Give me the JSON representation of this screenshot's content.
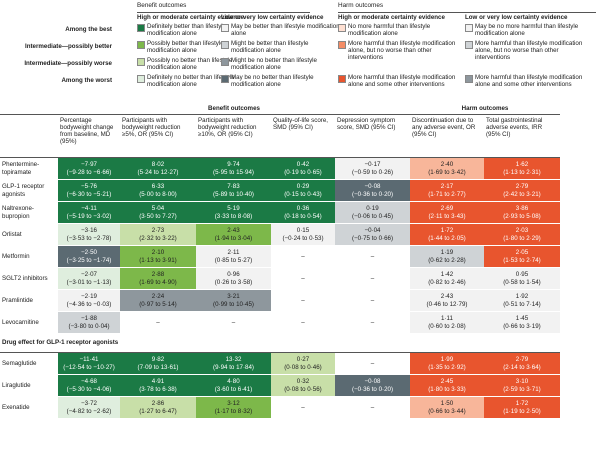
{
  "colors": {
    "best_benefit": "#1b7a45",
    "possibly_better_benefit": "#7db84a",
    "possibly_worse_benefit": "#c8dfa8",
    "worst_benefit": "#dfeede",
    "low_best": "#f2f2f2",
    "low_possibly_better": "#cfd3d6",
    "low_possibly_worse": "#8e979d",
    "low_worst": "#5b6a72",
    "harm_best": "#ffe0d2",
    "harm_possibly_better": "#f8b69a",
    "harm_possibly_worse": "#f58d66",
    "harm_worst": "#e8552e",
    "harm_low_best": "#f2f2f2",
    "harm_low_mid": "#cfd3d6",
    "harm_low_worst": "#8e979d"
  },
  "legend": {
    "benefit_title": "Benefit outcomes",
    "harm_title": "Harm outcomes",
    "high_moderate": "High or moderate certainty evidence",
    "low_very_low": "Low or very low certainty evidence",
    "rows": [
      {
        "label": "Among the best",
        "b_high": "Definitely better than lifestyle modification alone",
        "b_low": "May be better than lifestyle modification alone",
        "h_high": "No more harmful than lifestyle modification alone",
        "h_low": "May be no more harmful than lifestyle modification alone"
      },
      {
        "label": "Intermediate—possibly better",
        "b_high": "Possibly better than lifestyle modification alone",
        "b_low": "Might be better than lifestyle modification alone",
        "h_high": "More harmful than lifestyle modification alone, but no worse than other interventions",
        "h_low": "More harmful than lifestyle modification alone, but no worse than other interventions"
      },
      {
        "label": "Intermediate—possibly worse",
        "b_high": "Possibly no better than lifestyle modification alone",
        "b_low": "Might be no better than lifestyle modification alone",
        "h_high": "",
        "h_low": ""
      },
      {
        "label": "Among the worst",
        "b_high": "Definitely no better than lifestyle modification alone",
        "b_low": "May be no better than lifestyle modification alone",
        "h_high": "More harmful than lifestyle modification alone and some other interventions",
        "h_low": "More harmful than lifestyle modification alone and some other interventions"
      }
    ]
  },
  "table": {
    "benefit_header": "Benefit outcomes",
    "harm_header": "Harm outcomes",
    "columns": [
      "Percentage bodyweight change from baseline, MD (95%)",
      "Participants with bodyweight reduction ≥5%, OR (95% CI)",
      "Participants with bodyweight reduction ≥10%, OR (95% CI)",
      "Quality-of-life score, SMD (95% CI)",
      "Depression symptom score, SMD (95% CI)",
      "Discontinuation due to any adverse event, OR (95% CI)",
      "Total gastrointestinal adverse events, IRR (95% CI)"
    ],
    "rows": [
      {
        "name": "Phentermine-topiramate",
        "cells": [
          {
            "v": "−7·97",
            "ci": "(−9·28 to −6·66)",
            "c": "best_benefit"
          },
          {
            "v": "8·02",
            "ci": "(5·24 to 12·27)",
            "c": "best_benefit"
          },
          {
            "v": "9·74",
            "ci": "(5·95 to 15·94)",
            "c": "best_benefit"
          },
          {
            "v": "0·42",
            "ci": "(0·19 to 0·65)",
            "c": "best_benefit"
          },
          {
            "v": "−0·17",
            "ci": "(−0·59 to 0·26)",
            "c": "low_best"
          },
          {
            "v": "2·40",
            "ci": "(1·69 to 3·42)",
            "c": "harm_possibly_better"
          },
          {
            "v": "1·62",
            "ci": "(1·13 to 2·31)",
            "c": "harm_worst"
          }
        ]
      },
      {
        "name": "GLP-1 receptor agonists",
        "cells": [
          {
            "v": "−5·76",
            "ci": "(−6·30 to −5·21)",
            "c": "best_benefit"
          },
          {
            "v": "6·33",
            "ci": "(5·00 to 8·00)",
            "c": "best_benefit"
          },
          {
            "v": "7·83",
            "ci": "(5·89 to 10·40)",
            "c": "best_benefit"
          },
          {
            "v": "0·29",
            "ci": "(0·15 to 0·43)",
            "c": "best_benefit"
          },
          {
            "v": "−0·08",
            "ci": "(−0·36 to 0·20)",
            "c": "low_worst"
          },
          {
            "v": "2·17",
            "ci": "(1·71 to 2·77)",
            "c": "harm_worst"
          },
          {
            "v": "2·79",
            "ci": "(2·42 to 3·21)",
            "c": "harm_worst"
          }
        ]
      },
      {
        "name": "Naltrexone-bupropion",
        "cells": [
          {
            "v": "−4·11",
            "ci": "(−5·19 to −3·02)",
            "c": "best_benefit"
          },
          {
            "v": "5·04",
            "ci": "(3·50 to 7·27)",
            "c": "best_benefit"
          },
          {
            "v": "5·19",
            "ci": "(3·33 to 8·08)",
            "c": "best_benefit"
          },
          {
            "v": "0·36",
            "ci": "(0·18 to 0·54)",
            "c": "best_benefit"
          },
          {
            "v": "0·19",
            "ci": "(−0·06 to 0·45)",
            "c": "low_possibly_better"
          },
          {
            "v": "2·69",
            "ci": "(2·11 to 3·43)",
            "c": "harm_worst"
          },
          {
            "v": "3·86",
            "ci": "(2·93 to 5·08)",
            "c": "harm_worst"
          }
        ]
      },
      {
        "name": "Orlistat",
        "cells": [
          {
            "v": "−3·16",
            "ci": "(−3·53 to −2·78)",
            "c": "worst_benefit"
          },
          {
            "v": "2·73",
            "ci": "(2·32 to 3·22)",
            "c": "possibly_worse_benefit"
          },
          {
            "v": "2·43",
            "ci": "(1·94 to 3·04)",
            "c": "possibly_better_benefit"
          },
          {
            "v": "0·15",
            "ci": "(−0·24 to 0·53)",
            "c": "low_best"
          },
          {
            "v": "−0·04",
            "ci": "(−0·75 to 0·66)",
            "c": "low_possibly_better"
          },
          {
            "v": "1·72",
            "ci": "(1·44 to 2·05)",
            "c": "harm_worst"
          },
          {
            "v": "2·03",
            "ci": "(1·80 to 2·29)",
            "c": "harm_worst"
          }
        ]
      },
      {
        "name": "Metformin",
        "cells": [
          {
            "v": "−2·50",
            "ci": "(−3·25 to −1·74)",
            "c": "low_worst"
          },
          {
            "v": "2·10",
            "ci": "(1·13 to 3·91)",
            "c": "possibly_better_benefit"
          },
          {
            "v": "2·11",
            "ci": "(0·85 to 5·27)",
            "c": "low_best"
          },
          {
            "v": "–",
            "ci": "",
            "c": "none"
          },
          {
            "v": "–",
            "ci": "",
            "c": "none"
          },
          {
            "v": "1·19",
            "ci": "(0·62 to 2·28)",
            "c": "harm_low_mid"
          },
          {
            "v": "2·05",
            "ci": "(1·53 to 2·74)",
            "c": "harm_worst"
          }
        ]
      },
      {
        "name": "SGLT2 inhibitors",
        "cells": [
          {
            "v": "−2·07",
            "ci": "(−3·01 to −1·13)",
            "c": "worst_benefit"
          },
          {
            "v": "2·88",
            "ci": "(1·69 to 4·90)",
            "c": "possibly_better_benefit"
          },
          {
            "v": "0·96",
            "ci": "(0·26 to 3·58)",
            "c": "low_best"
          },
          {
            "v": "–",
            "ci": "",
            "c": "none"
          },
          {
            "v": "–",
            "ci": "",
            "c": "none"
          },
          {
            "v": "1·42",
            "ci": "(0·82 to 2·46)",
            "c": "harm_low_best"
          },
          {
            "v": "0·95",
            "ci": "(0·58 to 1·54)",
            "c": "harm_low_best"
          }
        ]
      },
      {
        "name": "Pramlintide",
        "cells": [
          {
            "v": "−2·19",
            "ci": "(−4·36 to −0·03)",
            "c": "low_best"
          },
          {
            "v": "2·24",
            "ci": "(0·97 to 5·14)",
            "c": "low_possibly_worse"
          },
          {
            "v": "3·21",
            "ci": "(0·99 to 10·45)",
            "c": "low_possibly_worse"
          },
          {
            "v": "–",
            "ci": "",
            "c": "none"
          },
          {
            "v": "–",
            "ci": "",
            "c": "none"
          },
          {
            "v": "2·43",
            "ci": "(0·46 to 12·79)",
            "c": "harm_low_best"
          },
          {
            "v": "1·92",
            "ci": "(0·51 to 7·14)",
            "c": "harm_low_best"
          }
        ]
      },
      {
        "name": "Levocarnitine",
        "cells": [
          {
            "v": "−1·88",
            "ci": "(−3·80 to 0·04)",
            "c": "low_possibly_better"
          },
          {
            "v": "–",
            "ci": "",
            "c": "none"
          },
          {
            "v": "–",
            "ci": "",
            "c": "none"
          },
          {
            "v": "–",
            "ci": "",
            "c": "none"
          },
          {
            "v": "–",
            "ci": "",
            "c": "none"
          },
          {
            "v": "1·11",
            "ci": "(0·60 to 2·08)",
            "c": "harm_low_best"
          },
          {
            "v": "1·45",
            "ci": "(0·66 to 3·19)",
            "c": "harm_low_best"
          }
        ]
      }
    ],
    "drug_header": "Drug effect for GLP-1 receptor agonists",
    "drug_rows": [
      {
        "name": "Semaglutide",
        "cells": [
          {
            "v": "−11·41",
            "ci": "(−12·54 to −10·27)",
            "c": "best_benefit"
          },
          {
            "v": "9·82",
            "ci": "(7·09 to 13·61)",
            "c": "best_benefit"
          },
          {
            "v": "13·32",
            "ci": "(9·94 to 17·84)",
            "c": "best_benefit"
          },
          {
            "v": "0·27",
            "ci": "(0·08 to 0·46)",
            "c": "possibly_worse_benefit"
          },
          {
            "v": "–",
            "ci": "",
            "c": "none"
          },
          {
            "v": "1·99",
            "ci": "(1·35 to 2·92)",
            "c": "harm_worst"
          },
          {
            "v": "2·79",
            "ci": "(2·14 to 3·64)",
            "c": "harm_worst"
          }
        ]
      },
      {
        "name": "Liraglutide",
        "cells": [
          {
            "v": "−4·68",
            "ci": "(−5·30 to −4·06)",
            "c": "best_benefit"
          },
          {
            "v": "4·91",
            "ci": "(3·78 to 6·38)",
            "c": "best_benefit"
          },
          {
            "v": "4·80",
            "ci": "(3·60 to 6·41)",
            "c": "best_benefit"
          },
          {
            "v": "0·32",
            "ci": "(0·08 to 0·56)",
            "c": "possibly_worse_benefit"
          },
          {
            "v": "−0·08",
            "ci": "(−0·36 to 0·20)",
            "c": "low_worst"
          },
          {
            "v": "2·45",
            "ci": "(1·80 to 3·33)",
            "c": "harm_worst"
          },
          {
            "v": "3·10",
            "ci": "(2·59 to 3·71)",
            "c": "harm_worst"
          }
        ]
      },
      {
        "name": "Exenatide",
        "cells": [
          {
            "v": "−3·72",
            "ci": "(−4·82 to −2·62)",
            "c": "worst_benefit"
          },
          {
            "v": "2·86",
            "ci": "(1·27 to 6·47)",
            "c": "possibly_worse_benefit"
          },
          {
            "v": "3·12",
            "ci": "(1·17 to 8·32)",
            "c": "possibly_better_benefit"
          },
          {
            "v": "–",
            "ci": "",
            "c": "none"
          },
          {
            "v": "–",
            "ci": "",
            "c": "none"
          },
          {
            "v": "1·50",
            "ci": "(0·66 to 3·44)",
            "c": "harm_possibly_better"
          },
          {
            "v": "1·72",
            "ci": "(1·19 to 2·50)",
            "c": "harm_worst"
          }
        ]
      }
    ]
  }
}
